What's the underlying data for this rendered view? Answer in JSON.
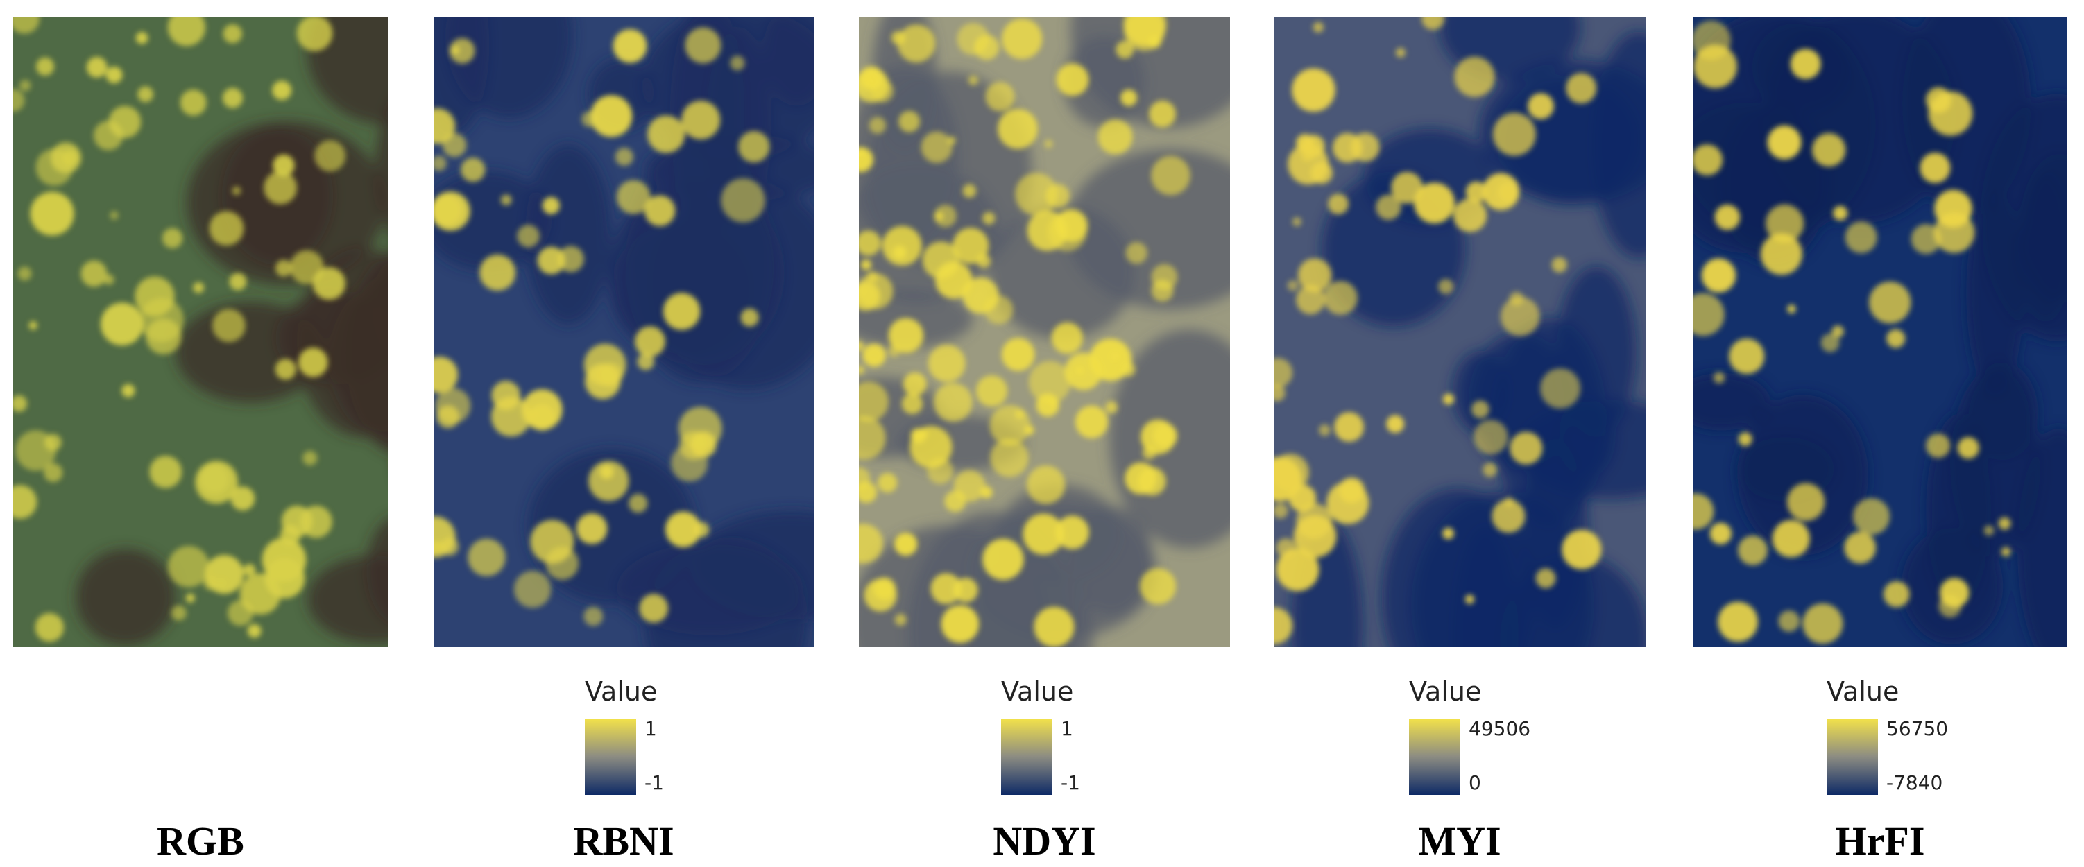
{
  "panels": [
    {
      "title": "RGB"
    },
    {
      "title": "RBNI",
      "legend": {
        "label": "Value",
        "max": 1,
        "min": -1
      }
    },
    {
      "title": "NDYI",
      "legend": {
        "label": "Value",
        "max": 1,
        "min": -1
      }
    },
    {
      "title": "MYI",
      "legend": {
        "label": "Value",
        "max": 49506,
        "min": 0
      }
    },
    {
      "title": "HrFI",
      "legend": {
        "label": "Value",
        "max": 56750,
        "min": -7840
      }
    }
  ]
}
